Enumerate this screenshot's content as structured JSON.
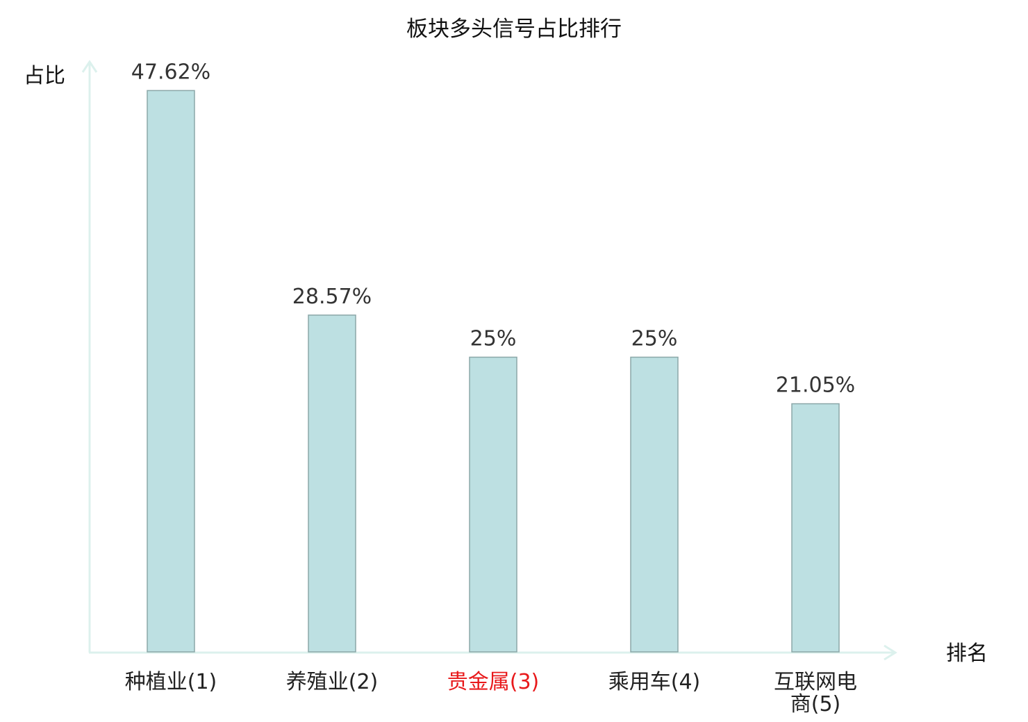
{
  "chart_data": {
    "type": "bar",
    "title": "板块多头信号占比排行",
    "xlabel": "排名",
    "ylabel": "占比",
    "categories": [
      "种植业(1)",
      "养殖业(2)",
      "贵金属(3)",
      "乘用车(4)",
      "互联网电商(5)"
    ],
    "values": [
      47.62,
      28.57,
      25,
      25,
      21.05
    ],
    "data_labels": [
      "47.62%",
      "28.57%",
      "25%",
      "25%",
      "21.05%"
    ],
    "ylim": [
      0,
      50
    ],
    "grid": false,
    "colors": {
      "bar_fill": "#bde0e2",
      "bar_stroke": "#8ba7a8",
      "axis": "#dcf1ed",
      "highlight": "#e8191b"
    },
    "label_colors": [
      "#222222",
      "#222222",
      "#e8191b",
      "#222222",
      "#222222"
    ]
  }
}
